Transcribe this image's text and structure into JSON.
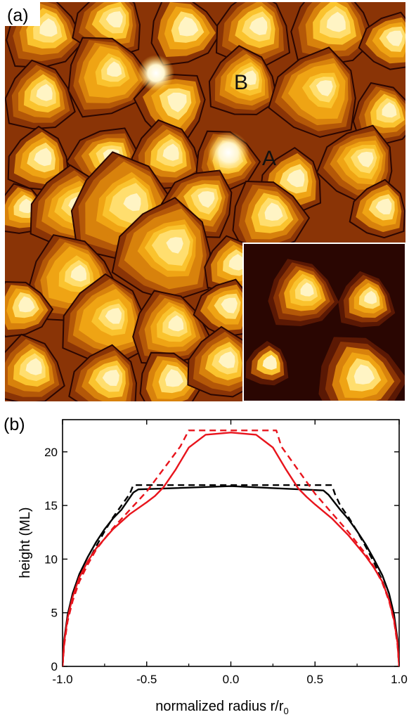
{
  "panel_a": {
    "label": "(a)",
    "markers": [
      "B",
      "A"
    ],
    "palette": [
      "#2a0602",
      "#5a1804",
      "#8a3406",
      "#b45808",
      "#d8820c",
      "#efa414",
      "#fac32e",
      "#ffde6e",
      "#fff4c4"
    ]
  },
  "panel_b": {
    "label": "(b)"
  },
  "chart_data": {
    "type": "line",
    "xlabel": "normalized radius r/r",
    "xlabel_subscript": "0",
    "ylabel": "height (ML)",
    "xlim": [
      -1.0,
      1.0
    ],
    "ylim": [
      0,
      23
    ],
    "xticks": [
      "-1.0",
      "-0.5",
      "0.0",
      "0.5",
      "1.0"
    ],
    "yticks": [
      "0",
      "5",
      "10",
      "15",
      "20"
    ],
    "series": [
      {
        "color": "#000000",
        "style": "solid",
        "x": [
          -1.0,
          -0.99,
          -0.97,
          -0.94,
          -0.9,
          -0.85,
          -0.8,
          -0.75,
          -0.7,
          -0.65,
          -0.58,
          -0.55,
          0.0,
          0.55,
          0.58,
          0.65,
          0.7,
          0.75,
          0.8,
          0.85,
          0.9,
          0.94,
          0.97,
          0.99,
          1.0
        ],
        "y": [
          0,
          2.5,
          4.8,
          6.8,
          8.6,
          10.2,
          11.6,
          12.8,
          13.8,
          14.6,
          16.2,
          16.5,
          16.8,
          16.4,
          16.0,
          14.6,
          13.7,
          12.6,
          11.4,
          10.0,
          8.5,
          6.8,
          4.8,
          2.5,
          0
        ]
      },
      {
        "color": "#000000",
        "style": "dashed",
        "x": [
          -1.0,
          -0.99,
          -0.97,
          -0.94,
          -0.9,
          -0.85,
          -0.8,
          -0.75,
          -0.7,
          -0.65,
          -0.6,
          -0.58,
          0.0,
          0.6,
          0.62,
          0.65,
          0.7,
          0.75,
          0.8,
          0.85,
          0.9,
          0.94,
          0.97,
          0.99,
          1.0
        ],
        "y": [
          0,
          2.2,
          4.3,
          6.2,
          8.0,
          9.7,
          11.2,
          12.6,
          13.9,
          15.0,
          16.1,
          16.9,
          16.9,
          16.9,
          16.0,
          15.0,
          13.9,
          12.6,
          11.2,
          9.7,
          8.0,
          6.2,
          4.3,
          2.2,
          0
        ]
      },
      {
        "color": "#e8141c",
        "style": "solid",
        "x": [
          -1.0,
          -0.99,
          -0.97,
          -0.94,
          -0.9,
          -0.85,
          -0.8,
          -0.7,
          -0.6,
          -0.5,
          -0.45,
          -0.4,
          -0.33,
          -0.25,
          -0.15,
          0.0,
          0.15,
          0.25,
          0.33,
          0.4,
          0.45,
          0.5,
          0.6,
          0.7,
          0.8,
          0.85,
          0.9,
          0.94,
          0.97,
          0.99,
          1.0
        ],
        "y": [
          0,
          2.3,
          4.5,
          6.5,
          8.3,
          9.8,
          11.0,
          12.8,
          14.2,
          15.3,
          15.9,
          16.7,
          18.3,
          20.4,
          21.6,
          21.8,
          21.6,
          20.4,
          18.3,
          16.6,
          15.8,
          15.1,
          13.8,
          12.2,
          10.3,
          9.2,
          7.9,
          6.2,
          4.3,
          2.2,
          0
        ]
      },
      {
        "color": "#e8141c",
        "style": "dashed",
        "x": [
          -1.0,
          -0.99,
          -0.97,
          -0.94,
          -0.9,
          -0.85,
          -0.8,
          -0.7,
          -0.6,
          -0.5,
          -0.4,
          -0.3,
          -0.25,
          0.0,
          0.27,
          0.3,
          0.4,
          0.5,
          0.6,
          0.7,
          0.8,
          0.85,
          0.9,
          0.94,
          0.97,
          0.99,
          1.0
        ],
        "y": [
          0,
          2.0,
          4.2,
          6.1,
          7.9,
          9.5,
          10.9,
          12.9,
          14.6,
          16.3,
          18.4,
          20.5,
          22.0,
          22.0,
          22.0,
          20.5,
          18.3,
          16.1,
          14.3,
          12.5,
          10.5,
          9.3,
          7.8,
          6.1,
          4.2,
          2.0,
          0
        ]
      }
    ]
  }
}
